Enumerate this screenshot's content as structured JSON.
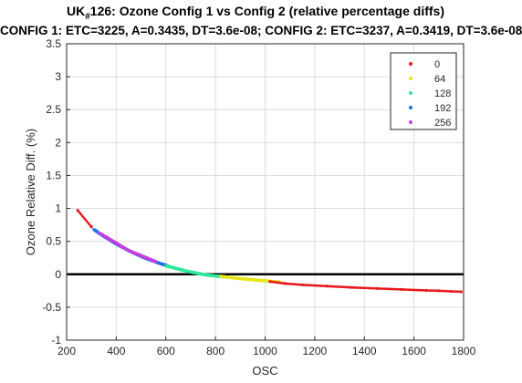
{
  "chart_data": {
    "type": "scatter",
    "title_prefix": "UK",
    "title_sub": "#",
    "title_suffix": "126: Ozone Config 1 vs Config 2 (relative percentage diffs)",
    "subtitle": "CONFIG 1: ETC=3225, A=0.3435, DT=3.6e-08; CONFIG 2: ETC=3237, A=0.3419, DT=3.6e-08",
    "xlabel": "OSC",
    "ylabel": "Ozone Relative Diff. (%)",
    "xlim": [
      200,
      1800
    ],
    "ylim": [
      -1,
      3.5
    ],
    "xticks": [
      200,
      400,
      600,
      800,
      1000,
      1200,
      1400,
      1600,
      1800
    ],
    "yticks": [
      -1,
      -0.5,
      0,
      0.5,
      1,
      1.5,
      2,
      2.5,
      3,
      3.5
    ],
    "ytick_labels": [
      "-1",
      "-0.5",
      "0",
      "0.5",
      "1",
      "1.5",
      "2",
      "2.5",
      "3",
      "3.5"
    ],
    "grid": true,
    "reference_line_y": 0,
    "legend_position": "top-right",
    "legend": [
      {
        "label": "0",
        "color": "#e8181c"
      },
      {
        "label": "64",
        "color": "#e6e61a"
      },
      {
        "label": "128",
        "color": "#2ee89a"
      },
      {
        "label": "192",
        "color": "#1a73e8"
      },
      {
        "label": "256",
        "color": "#c040e0"
      }
    ],
    "series": [
      {
        "name": "0",
        "color": "#e8181c",
        "points": [
          [
            245,
            0.97
          ],
          [
            300,
            0.72
          ],
          [
            1020,
            -0.11
          ],
          [
            1080,
            -0.14
          ],
          [
            1150,
            -0.16
          ],
          [
            1250,
            -0.18
          ],
          [
            1350,
            -0.2
          ],
          [
            1450,
            -0.215
          ],
          [
            1550,
            -0.23
          ],
          [
            1650,
            -0.245
          ],
          [
            1700,
            -0.25
          ],
          [
            1750,
            -0.26
          ],
          [
            1790,
            -0.265
          ]
        ]
      },
      {
        "name": "64",
        "color": "#e6e61a",
        "points": [
          [
            820,
            -0.03
          ],
          [
            860,
            -0.05
          ],
          [
            900,
            -0.065
          ],
          [
            940,
            -0.08
          ],
          [
            980,
            -0.095
          ],
          [
            1020,
            -0.105
          ],
          [
            1060,
            -0.12
          ]
        ]
      },
      {
        "name": "128",
        "color": "#2ee89a",
        "points": [
          [
            600,
            0.13
          ],
          [
            640,
            0.09
          ],
          [
            680,
            0.05
          ],
          [
            720,
            0.02
          ],
          [
            760,
            -0.01
          ],
          [
            800,
            -0.025
          ],
          [
            840,
            -0.04
          ]
        ]
      },
      {
        "name": "192",
        "color": "#1a73e8",
        "points": [
          [
            310,
            0.68
          ],
          [
            340,
            0.6
          ],
          [
            370,
            0.53
          ],
          [
            400,
            0.46
          ],
          [
            430,
            0.4
          ],
          [
            460,
            0.34
          ],
          [
            490,
            0.29
          ],
          [
            520,
            0.24
          ],
          [
            550,
            0.2
          ],
          [
            580,
            0.16
          ],
          [
            610,
            0.125
          ]
        ]
      },
      {
        "name": "256",
        "color": "#c040e0",
        "points": [
          [
            330,
            0.63
          ],
          [
            450,
            0.36
          ],
          [
            560,
            0.19
          ]
        ]
      }
    ]
  }
}
